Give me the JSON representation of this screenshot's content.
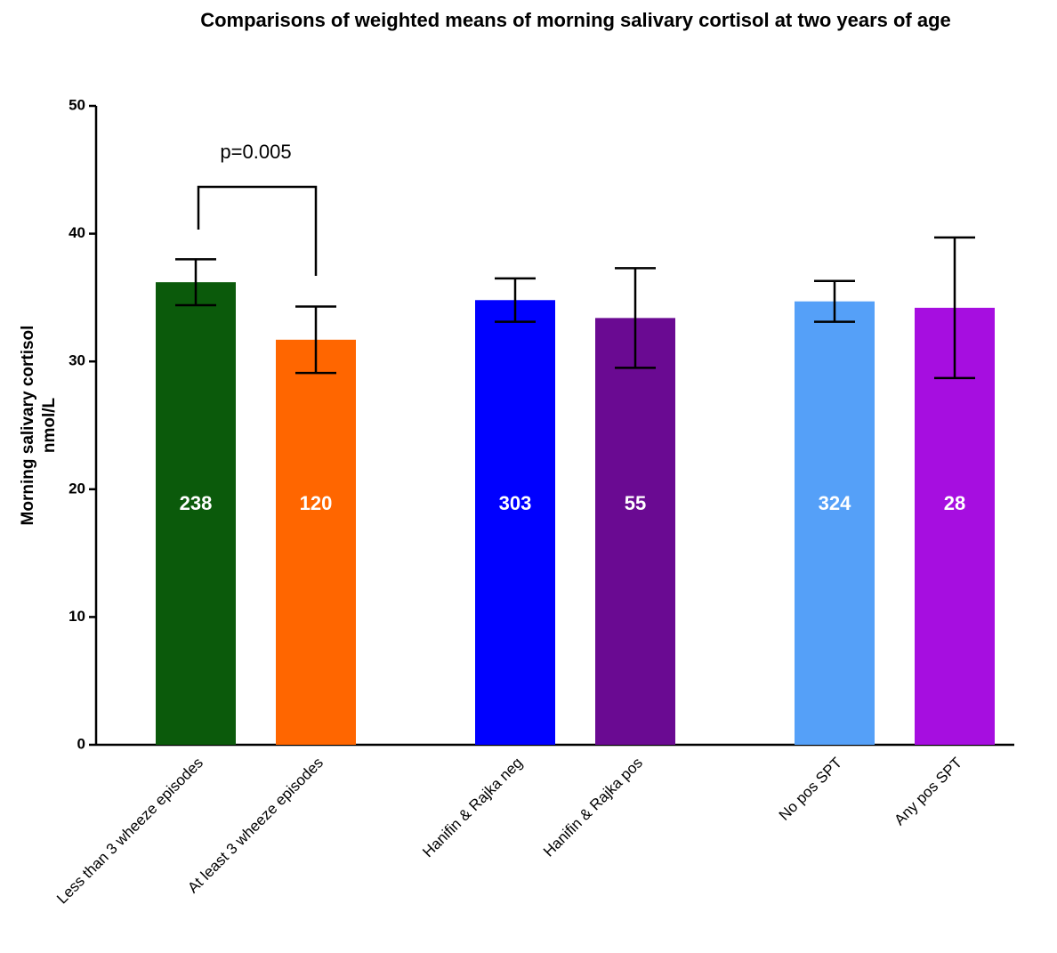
{
  "chart_data": {
    "type": "bar",
    "title": "Comparisons of weighted means of morning salivary cortisol at two years of age",
    "ylabel": [
      "Morning salivary cortisol",
      "nmol/L"
    ],
    "categories": [
      "Less than 3 wheeze episodes",
      "At least 3 wheeze episodes",
      "Hanifin & Rajka neg",
      "Hanifin & Rajka pos",
      "No pos SPT",
      "Any pos SPT"
    ],
    "values": [
      36.2,
      31.7,
      34.8,
      33.4,
      34.7,
      34.2
    ],
    "errors": [
      1.8,
      2.6,
      1.7,
      3.9,
      1.6,
      5.5
    ],
    "n": [
      238,
      120,
      303,
      55,
      324,
      28
    ],
    "colors": [
      "#0b5a0b",
      "#ff6600",
      "#0000ff",
      "#6a0a92",
      "#55a0f8",
      "#a60ee0"
    ],
    "annotation": "p=0.005",
    "ylim": [
      0,
      50
    ],
    "yticks": [
      0,
      10,
      20,
      30,
      40,
      50
    ]
  }
}
